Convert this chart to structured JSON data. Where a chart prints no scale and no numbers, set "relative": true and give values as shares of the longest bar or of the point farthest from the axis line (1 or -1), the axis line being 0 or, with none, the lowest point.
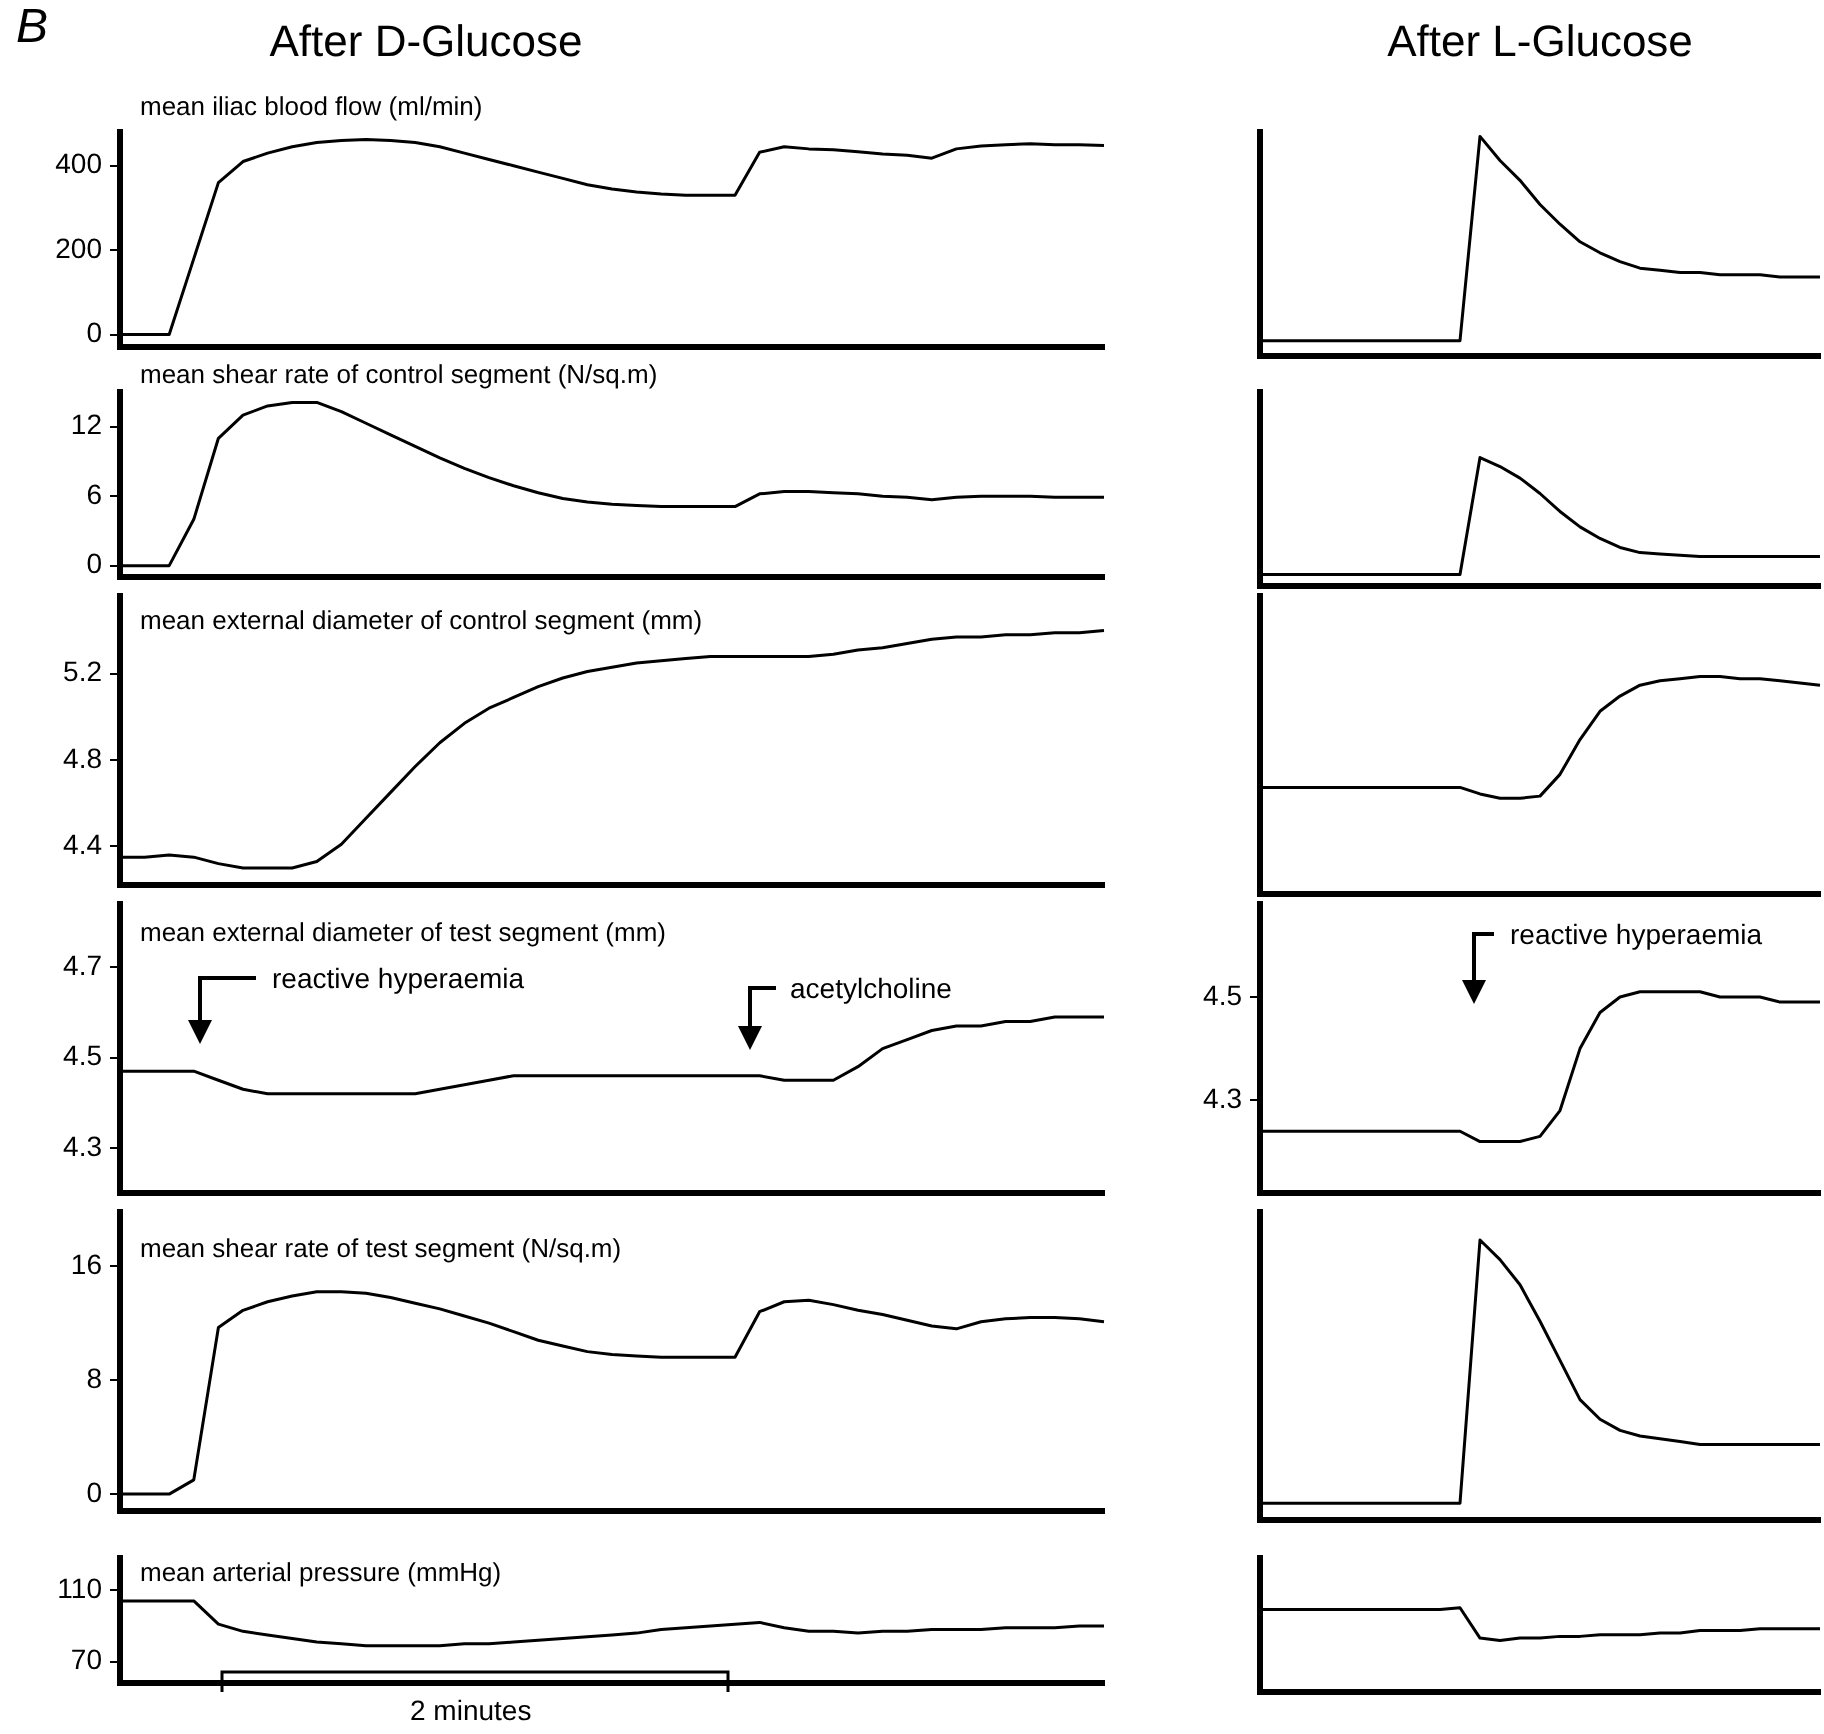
{
  "chart_data": [
    {
      "type": "line",
      "title": "After D-Glucose",
      "ylabel": "mean iliac blood flow (ml/min)",
      "annotations": [
        "B"
      ],
      "tick_labels": "y",
      "color": "#000000",
      "categories": [
        null,
        null,
        null,
        null,
        null,
        null,
        null,
        null,
        null,
        null,
        null,
        null,
        null,
        null,
        null,
        null,
        null,
        null,
        null,
        null,
        null,
        null,
        null,
        null,
        null,
        null,
        null,
        null,
        null,
        null,
        null,
        null,
        null,
        null,
        null,
        null,
        null,
        null,
        null,
        null,
        null
      ],
      "values": [
        0,
        0,
        0,
        180,
        360,
        410,
        430,
        445,
        455,
        460,
        462,
        460,
        455,
        445,
        430,
        415,
        400,
        385,
        370,
        355,
        345,
        338,
        333,
        330,
        330,
        330,
        432,
        445,
        440,
        438,
        433,
        428,
        425,
        418,
        440,
        447,
        450,
        452,
        450,
        450,
        448
      ],
      "ylim": [
        -30,
        480
      ],
      "yticks": [
        0,
        200,
        400
      ]
    },
    {
      "type": "line",
      "title": "After L-Glucose",
      "tick_labels": false,
      "relative": true,
      "color": "#000000",
      "categories": [
        null,
        null,
        null,
        null,
        null,
        null,
        null,
        null,
        null,
        null,
        null,
        null,
        null,
        null,
        null,
        null,
        null,
        null,
        null,
        null,
        null,
        null,
        null,
        null,
        null,
        null,
        null,
        null,
        null
      ],
      "values": [
        0.07,
        0.07,
        0.07,
        0.07,
        0.07,
        0.07,
        0.07,
        0.07,
        0.07,
        0.07,
        0.07,
        1,
        0.89,
        0.8,
        0.69,
        0.6,
        0.52,
        0.47,
        0.43,
        0.4,
        0.39,
        0.38,
        0.38,
        0.37,
        0.37,
        0.37,
        0.36,
        0.36,
        0.36
      ]
    },
    {
      "type": "line",
      "ylabel": "mean shear rate of control segment (N/sq.m)",
      "tick_labels": "y",
      "color": "#000000",
      "categories": [
        null,
        null,
        null,
        null,
        null,
        null,
        null,
        null,
        null,
        null,
        null,
        null,
        null,
        null,
        null,
        null,
        null,
        null,
        null,
        null,
        null,
        null,
        null,
        null,
        null,
        null,
        null,
        null,
        null,
        null,
        null,
        null,
        null,
        null,
        null,
        null,
        null,
        null,
        null,
        null,
        null
      ],
      "values": [
        0,
        0,
        0,
        4,
        11,
        13,
        13.8,
        14.1,
        14.1,
        13.3,
        12.3,
        11.3,
        10.3,
        9.3,
        8.4,
        7.6,
        6.9,
        6.3,
        5.8,
        5.5,
        5.3,
        5.2,
        5.1,
        5.1,
        5.1,
        5.1,
        6.2,
        6.4,
        6.4,
        6.3,
        6.2,
        6.0,
        5.9,
        5.7,
        5.9,
        6.0,
        6.0,
        6.0,
        5.9,
        5.9,
        5.9
      ],
      "ylim": [
        -1,
        15
      ],
      "yticks": [
        0,
        6,
        12
      ]
    },
    {
      "type": "line",
      "tick_labels": false,
      "relative": true,
      "color": "#000000",
      "categories": [
        null,
        null,
        null,
        null,
        null,
        null,
        null,
        null,
        null,
        null,
        null,
        null,
        null,
        null,
        null,
        null,
        null,
        null,
        null,
        null,
        null,
        null,
        null,
        null,
        null,
        null,
        null,
        null,
        null
      ],
      "values": [
        0.09,
        0.09,
        0.09,
        0.09,
        0.09,
        0.09,
        0.09,
        0.09,
        0.09,
        0.09,
        0.09,
        1,
        0.93,
        0.84,
        0.72,
        0.58,
        0.46,
        0.37,
        0.3,
        0.26,
        0.25,
        0.24,
        0.23,
        0.23,
        0.23,
        0.23,
        0.23,
        0.23,
        0.23
      ]
    },
    {
      "type": "line",
      "ylabel": "mean external diameter of control segment (mm)",
      "tick_labels": "y",
      "color": "#000000",
      "categories": [
        null,
        null,
        null,
        null,
        null,
        null,
        null,
        null,
        null,
        null,
        null,
        null,
        null,
        null,
        null,
        null,
        null,
        null,
        null,
        null,
        null,
        null,
        null,
        null,
        null,
        null,
        null,
        null,
        null,
        null,
        null,
        null,
        null,
        null,
        null,
        null,
        null,
        null,
        null,
        null,
        null
      ],
      "values": [
        4.35,
        4.35,
        4.36,
        4.35,
        4.32,
        4.3,
        4.3,
        4.3,
        4.33,
        4.41,
        4.53,
        4.65,
        4.77,
        4.88,
        4.97,
        5.04,
        5.09,
        5.14,
        5.18,
        5.21,
        5.23,
        5.25,
        5.26,
        5.27,
        5.28,
        5.28,
        5.28,
        5.28,
        5.28,
        5.29,
        5.31,
        5.32,
        5.34,
        5.36,
        5.37,
        5.37,
        5.38,
        5.38,
        5.39,
        5.39,
        5.4
      ],
      "ylim": [
        4.22,
        5.56
      ],
      "yticks": [
        4.4,
        4.8,
        5.2
      ]
    },
    {
      "type": "line",
      "tick_labels": false,
      "relative": true,
      "color": "#000000",
      "categories": [
        null,
        null,
        null,
        null,
        null,
        null,
        null,
        null,
        null,
        null,
        null,
        null,
        null,
        null,
        null,
        null,
        null,
        null,
        null,
        null,
        null,
        null,
        null,
        null,
        null,
        null,
        null,
        null,
        null
      ],
      "values": [
        0.49,
        0.49,
        0.49,
        0.49,
        0.49,
        0.49,
        0.49,
        0.49,
        0.49,
        0.49,
        0.49,
        0.46,
        0.44,
        0.44,
        0.45,
        0.55,
        0.71,
        0.84,
        0.91,
        0.96,
        0.98,
        0.99,
        1,
        1,
        0.99,
        0.99,
        0.98,
        0.97,
        0.96
      ]
    },
    {
      "type": "line",
      "ylabel": "mean external diameter of test segment (mm)",
      "annotations": [
        "reactive hyperaemia",
        "acetylcholine"
      ],
      "tick_labels": "y",
      "color": "#000000",
      "categories": [
        null,
        null,
        null,
        null,
        null,
        null,
        null,
        null,
        null,
        null,
        null,
        null,
        null,
        null,
        null,
        null,
        null,
        null,
        null,
        null,
        null,
        null,
        null,
        null,
        null,
        null,
        null,
        null,
        null,
        null,
        null,
        null,
        null,
        null,
        null,
        null,
        null,
        null,
        null,
        null,
        null
      ],
      "values": [
        4.47,
        4.47,
        4.47,
        4.47,
        4.45,
        4.43,
        4.42,
        4.42,
        4.42,
        4.42,
        4.42,
        4.42,
        4.42,
        4.43,
        4.44,
        4.45,
        4.46,
        4.46,
        4.46,
        4.46,
        4.46,
        4.46,
        4.46,
        4.46,
        4.46,
        4.46,
        4.46,
        4.45,
        4.45,
        4.45,
        4.48,
        4.52,
        4.54,
        4.56,
        4.57,
        4.57,
        4.58,
        4.58,
        4.59,
        4.59,
        4.59
      ],
      "ylim": [
        4.2,
        4.84
      ],
      "yticks": [
        4.3,
        4.5,
        4.7
      ]
    },
    {
      "type": "line",
      "annotations": [
        "reactive hyperaemia"
      ],
      "tick_labels": "y",
      "color": "#000000",
      "categories": [
        null,
        null,
        null,
        null,
        null,
        null,
        null,
        null,
        null,
        null,
        null,
        null,
        null,
        null,
        null,
        null,
        null,
        null,
        null,
        null,
        null,
        null,
        null,
        null,
        null,
        null,
        null,
        null,
        null
      ],
      "values": [
        4.24,
        4.24,
        4.24,
        4.24,
        4.24,
        4.24,
        4.24,
        4.24,
        4.24,
        4.24,
        4.24,
        4.22,
        4.22,
        4.22,
        4.23,
        4.28,
        4.4,
        4.47,
        4.5,
        4.51,
        4.51,
        4.51,
        4.51,
        4.5,
        4.5,
        4.5,
        4.49,
        4.49,
        4.49
      ],
      "ylim": [
        4.12,
        4.68
      ],
      "yticks": [
        4.3,
        4.5
      ]
    },
    {
      "type": "line",
      "ylabel": "mean shear rate of test segment (N/sq.m)",
      "tick_labels": "y",
      "color": "#000000",
      "categories": [
        null,
        null,
        null,
        null,
        null,
        null,
        null,
        null,
        null,
        null,
        null,
        null,
        null,
        null,
        null,
        null,
        null,
        null,
        null,
        null,
        null,
        null,
        null,
        null,
        null,
        null,
        null,
        null,
        null,
        null,
        null,
        null,
        null,
        null,
        null,
        null,
        null,
        null,
        null,
        null,
        null
      ],
      "values": [
        0,
        0,
        0,
        1,
        11.7,
        12.9,
        13.5,
        13.9,
        14.2,
        14.2,
        14.1,
        13.8,
        13.4,
        13.0,
        12.5,
        12.0,
        11.4,
        10.8,
        10.4,
        10.0,
        9.8,
        9.7,
        9.6,
        9.6,
        9.6,
        9.6,
        12.8,
        13.5,
        13.6,
        13.3,
        12.9,
        12.6,
        12.2,
        11.8,
        11.6,
        12.1,
        12.3,
        12.4,
        12.4,
        12.3,
        12.1
      ],
      "ylim": [
        -1.2,
        19.8
      ],
      "yticks": [
        0,
        8,
        16
      ]
    },
    {
      "type": "line",
      "tick_labels": false,
      "relative": true,
      "color": "#000000",
      "categories": [
        null,
        null,
        null,
        null,
        null,
        null,
        null,
        null,
        null,
        null,
        null,
        null,
        null,
        null,
        null,
        null,
        null,
        null,
        null,
        null,
        null,
        null,
        null,
        null,
        null,
        null,
        null,
        null,
        null
      ],
      "values": [
        0.06,
        0.06,
        0.06,
        0.06,
        0.06,
        0.06,
        0.06,
        0.06,
        0.06,
        0.06,
        0.06,
        1,
        0.93,
        0.84,
        0.71,
        0.57,
        0.43,
        0.36,
        0.32,
        0.3,
        0.29,
        0.28,
        0.27,
        0.27,
        0.27,
        0.27,
        0.27,
        0.27,
        0.27
      ]
    },
    {
      "type": "line",
      "ylabel": "mean arterial pressure (mmHg)",
      "annotations": [
        "2 minutes"
      ],
      "tick_labels": "y",
      "color": "#000000",
      "categories": [
        null,
        null,
        null,
        null,
        null,
        null,
        null,
        null,
        null,
        null,
        null,
        null,
        null,
        null,
        null,
        null,
        null,
        null,
        null,
        null,
        null,
        null,
        null,
        null,
        null,
        null,
        null,
        null,
        null,
        null,
        null,
        null,
        null,
        null,
        null,
        null,
        null,
        null,
        null,
        null,
        null
      ],
      "values": [
        104,
        104,
        104,
        104,
        91,
        87,
        85,
        83,
        81,
        80,
        79,
        79,
        79,
        79,
        80,
        80,
        81,
        82,
        83,
        84,
        85,
        86,
        88,
        89,
        90,
        91,
        92,
        89,
        87,
        87,
        86,
        87,
        87,
        88,
        88,
        88,
        89,
        89,
        89,
        90,
        90
      ],
      "ylim": [
        58,
        128
      ],
      "yticks": [
        70,
        110
      ]
    },
    {
      "type": "line",
      "tick_labels": false,
      "relative": true,
      "color": "#000000",
      "categories": [
        null,
        null,
        null,
        null,
        null,
        null,
        null,
        null,
        null,
        null,
        null,
        null,
        null,
        null,
        null,
        null,
        null,
        null,
        null,
        null,
        null,
        null,
        null,
        null,
        null,
        null,
        null,
        null,
        null
      ],
      "values": [
        0.98,
        0.98,
        0.98,
        0.98,
        0.98,
        0.98,
        0.98,
        0.98,
        0.98,
        0.98,
        1,
        0.64,
        0.61,
        0.64,
        0.64,
        0.66,
        0.66,
        0.68,
        0.68,
        0.68,
        0.7,
        0.7,
        0.73,
        0.73,
        0.73,
        0.75,
        0.75,
        0.75,
        0.75
      ]
    }
  ]
}
